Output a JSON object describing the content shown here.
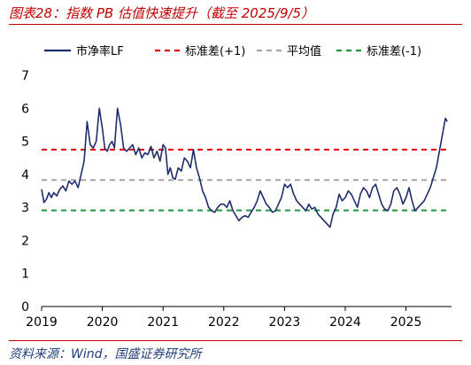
{
  "header": {
    "title": "图表28：指数 PB 估值快速提升（截至 2025/9/5）"
  },
  "footer": {
    "source": "资料来源：Wind，国盛证券研究所"
  },
  "colors": {
    "title": "#c00000",
    "series": "#1f2d6b",
    "upper": "#e00000",
    "mean": "#a6a6a6",
    "lower": "#1a9a3c"
  },
  "chart_data": {
    "type": "line",
    "title": "",
    "xlabel": "",
    "ylabel": "",
    "xlim": [
      2019,
      2025.75
    ],
    "ylim": [
      0,
      7
    ],
    "xticks": [
      "2019",
      "2020",
      "2021",
      "2022",
      "2023",
      "2024",
      "2025"
    ],
    "yticks": [
      "0",
      "1",
      "2",
      "3",
      "4",
      "5",
      "6",
      "7"
    ],
    "grid": false,
    "legend_position": "top",
    "series": [
      {
        "name": "市净率LF",
        "x": [
          2019.0,
          2019.04,
          2019.08,
          2019.12,
          2019.16,
          2019.2,
          2019.25,
          2019.3,
          2019.35,
          2019.4,
          2019.45,
          2019.5,
          2019.55,
          2019.6,
          2019.65,
          2019.7,
          2019.75,
          2019.8,
          2019.85,
          2019.9,
          2019.95,
          2020.0,
          2020.04,
          2020.08,
          2020.12,
          2020.16,
          2020.2,
          2020.25,
          2020.3,
          2020.35,
          2020.4,
          2020.45,
          2020.5,
          2020.55,
          2020.6,
          2020.65,
          2020.7,
          2020.75,
          2020.8,
          2020.85,
          2020.9,
          2020.95,
          2021.0,
          2021.04,
          2021.08,
          2021.12,
          2021.16,
          2021.2,
          2021.25,
          2021.3,
          2021.35,
          2021.4,
          2021.45,
          2021.5,
          2021.55,
          2021.6,
          2021.65,
          2021.7,
          2021.75,
          2021.8,
          2021.85,
          2021.9,
          2021.95,
          2022.0,
          2022.05,
          2022.1,
          2022.15,
          2022.2,
          2022.25,
          2022.3,
          2022.35,
          2022.4,
          2022.45,
          2022.5,
          2022.55,
          2022.6,
          2022.65,
          2022.7,
          2022.75,
          2022.8,
          2022.85,
          2022.9,
          2022.95,
          2023.0,
          2023.05,
          2023.1,
          2023.15,
          2023.2,
          2023.25,
          2023.3,
          2023.35,
          2023.4,
          2023.45,
          2023.5,
          2023.55,
          2023.6,
          2023.65,
          2023.7,
          2023.75,
          2023.8,
          2023.85,
          2023.9,
          2023.95,
          2024.0,
          2024.05,
          2024.1,
          2024.15,
          2024.2,
          2024.25,
          2024.3,
          2024.35,
          2024.4,
          2024.45,
          2024.5,
          2024.55,
          2024.6,
          2024.65,
          2024.7,
          2024.75,
          2024.8,
          2024.85,
          2024.9,
          2024.95,
          2025.0,
          2025.05,
          2025.1,
          2025.15,
          2025.2,
          2025.25,
          2025.3,
          2025.35,
          2025.4,
          2025.45,
          2025.5,
          2025.55,
          2025.6,
          2025.65,
          2025.68
        ],
        "values": [
          3.55,
          3.15,
          3.25,
          3.45,
          3.3,
          3.45,
          3.35,
          3.55,
          3.65,
          3.5,
          3.8,
          3.7,
          3.8,
          3.6,
          4.0,
          4.4,
          5.6,
          4.9,
          4.8,
          5.0,
          6.0,
          5.4,
          4.8,
          4.7,
          4.9,
          5.0,
          4.8,
          6.0,
          5.5,
          4.8,
          4.7,
          4.8,
          4.9,
          4.6,
          4.8,
          4.5,
          4.65,
          4.6,
          4.85,
          4.5,
          4.7,
          4.4,
          4.9,
          4.8,
          4.0,
          4.2,
          3.9,
          3.85,
          4.2,
          4.1,
          4.5,
          4.4,
          4.2,
          4.75,
          4.2,
          3.9,
          3.5,
          3.3,
          3.0,
          2.9,
          2.85,
          3.0,
          3.1,
          3.1,
          3.0,
          3.2,
          2.9,
          2.75,
          2.6,
          2.7,
          2.75,
          2.7,
          2.85,
          3.0,
          3.2,
          3.5,
          3.3,
          3.1,
          3.0,
          2.85,
          2.9,
          3.1,
          3.3,
          3.7,
          3.6,
          3.7,
          3.4,
          3.2,
          3.1,
          3.0,
          2.9,
          3.1,
          2.95,
          3.0,
          2.8,
          2.7,
          2.6,
          2.5,
          2.4,
          2.8,
          3.0,
          3.4,
          3.2,
          3.3,
          3.5,
          3.4,
          3.2,
          3.0,
          3.4,
          3.6,
          3.5,
          3.3,
          3.6,
          3.7,
          3.4,
          3.1,
          2.95,
          2.9,
          3.1,
          3.5,
          3.6,
          3.4,
          3.1,
          3.3,
          3.6,
          3.2,
          2.9,
          3.0,
          3.1,
          3.2,
          3.4,
          3.6,
          3.9,
          4.2,
          4.7,
          5.2,
          5.7,
          5.6
        ]
      },
      {
        "name": "标准差(+1)",
        "constant": 4.75
      },
      {
        "name": "平均值",
        "constant": 3.83
      },
      {
        "name": "标准差(-1)",
        "constant": 2.91
      }
    ]
  }
}
